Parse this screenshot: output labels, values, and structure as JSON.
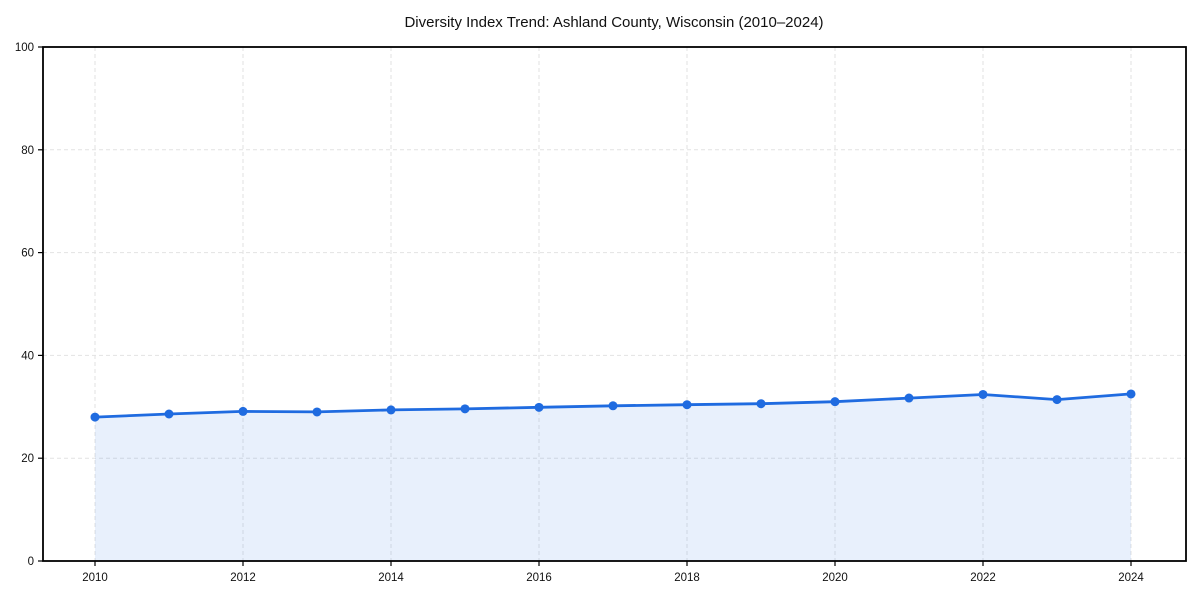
{
  "chart_data": {
    "type": "line",
    "title": "Diversity Index Trend: Ashland County, Wisconsin (2010–2024)",
    "x": [
      2010,
      2011,
      2012,
      2013,
      2014,
      2015,
      2016,
      2017,
      2018,
      2019,
      2020,
      2021,
      2022,
      2023,
      2024
    ],
    "series": [
      {
        "name": "Diversity Index",
        "values": [
          28.0,
          28.6,
          29.1,
          29.0,
          29.4,
          29.6,
          29.9,
          30.2,
          30.4,
          30.6,
          31.0,
          31.7,
          32.4,
          31.4,
          32.5
        ],
        "line_color": "#1f6be0",
        "fill_color": "rgba(31, 107, 224, 0.10)",
        "marker": "circle"
      }
    ],
    "xticks": [
      2010,
      2012,
      2014,
      2016,
      2018,
      2020,
      2022,
      2024
    ],
    "yticks": [
      0,
      20,
      40,
      60,
      80,
      100
    ],
    "ylim": [
      0,
      100
    ],
    "xlabel": "",
    "ylabel": "",
    "grid": {
      "style": "dashed",
      "color": "#e2e2e2"
    },
    "legend": "none",
    "axis_color": "#000000",
    "background": "#ffffff"
  }
}
